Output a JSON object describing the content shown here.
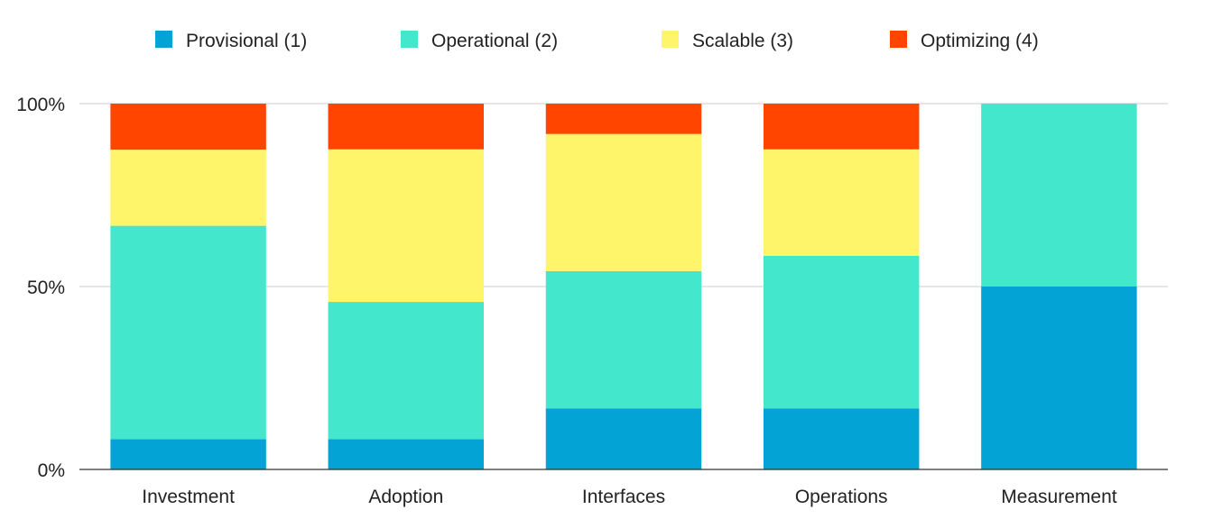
{
  "chart_data": {
    "type": "bar",
    "stacked": true,
    "categories": [
      "Investment",
      "Adoption",
      "Interfaces",
      "Operations",
      "Measurement"
    ],
    "series": [
      {
        "name": "Provisional (1)",
        "color": "#03A3D6",
        "values": [
          8.3,
          8.3,
          16.7,
          16.7,
          50
        ]
      },
      {
        "name": "Operational (2)",
        "color": "#43E8CC",
        "values": [
          58.3,
          37.5,
          37.5,
          41.7,
          50
        ]
      },
      {
        "name": "Scalable (3)",
        "color": "#FEF56A",
        "values": [
          20.8,
          41.7,
          37.5,
          29.1,
          0
        ]
      },
      {
        "name": "Optimizing (4)",
        "color": "#FF4500",
        "values": [
          12.6,
          12.5,
          8.3,
          12.5,
          0
        ]
      }
    ],
    "y_ticks": [
      "0%",
      "50%",
      "100%"
    ],
    "ylim": [
      0,
      100
    ],
    "grid": true,
    "legend_position": "top"
  }
}
